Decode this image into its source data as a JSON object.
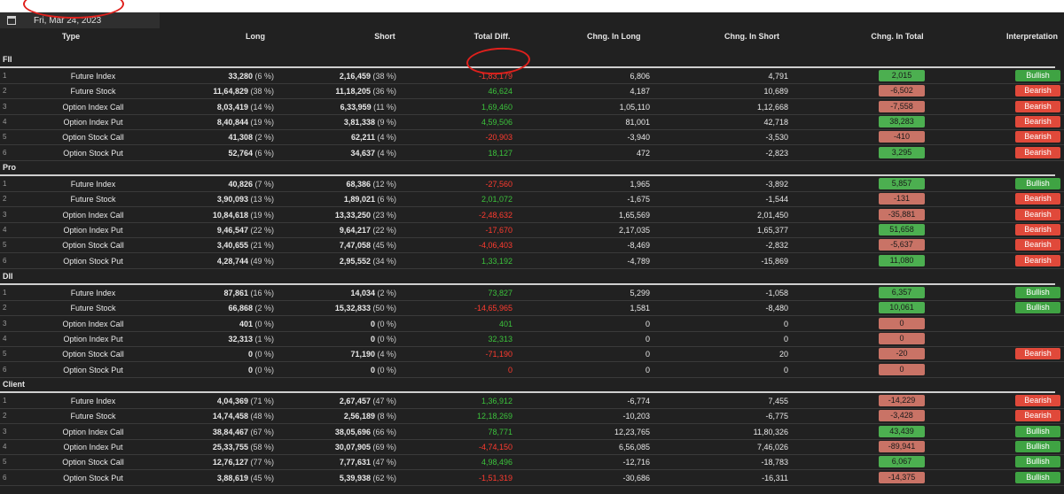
{
  "date": "Fri, Mar 24, 2023",
  "headers": {
    "type": "Type",
    "long": "Long",
    "short": "Short",
    "total_diff": "Total Diff.",
    "chng_long": "Chng. In Long",
    "chng_short": "Chng. In Short",
    "chng_total": "Chng. In Total",
    "interpretation": "Interpretation"
  },
  "colors": {
    "positive": "#3cc23c",
    "negative": "#ff3b2f",
    "bullish": "#3fa343",
    "bearish": "#e0493a"
  },
  "sections": [
    {
      "name": "FII",
      "rows": [
        {
          "idx": "1",
          "type": "Future Index",
          "long": "33,280",
          "long_pct": "(6 %)",
          "short": "2,16,459",
          "short_pct": "(38 %)",
          "diff": "-1,83,179",
          "clong": "6,806",
          "cshort": "4,791",
          "ctotal": "2,015",
          "interp": "Bullish"
        },
        {
          "idx": "2",
          "type": "Future Stock",
          "long": "11,64,829",
          "long_pct": "(38 %)",
          "short": "11,18,205",
          "short_pct": "(36 %)",
          "diff": "46,624",
          "clong": "4,187",
          "cshort": "10,689",
          "ctotal": "-6,502",
          "interp": "Bearish"
        },
        {
          "idx": "3",
          "type": "Option Index Call",
          "long": "8,03,419",
          "long_pct": "(14 %)",
          "short": "6,33,959",
          "short_pct": "(11 %)",
          "diff": "1,69,460",
          "clong": "1,05,110",
          "cshort": "1,12,668",
          "ctotal": "-7,558",
          "interp": "Bearish"
        },
        {
          "idx": "4",
          "type": "Option Index Put",
          "long": "8,40,844",
          "long_pct": "(19 %)",
          "short": "3,81,338",
          "short_pct": "(9 %)",
          "diff": "4,59,506",
          "clong": "81,001",
          "cshort": "42,718",
          "ctotal": "38,283",
          "interp": "Bearish"
        },
        {
          "idx": "5",
          "type": "Option Stock Call",
          "long": "41,308",
          "long_pct": "(2 %)",
          "short": "62,211",
          "short_pct": "(4 %)",
          "diff": "-20,903",
          "clong": "-3,940",
          "cshort": "-3,530",
          "ctotal": "-410",
          "interp": "Bearish"
        },
        {
          "idx": "6",
          "type": "Option Stock Put",
          "long": "52,764",
          "long_pct": "(6 %)",
          "short": "34,637",
          "short_pct": "(4 %)",
          "diff": "18,127",
          "clong": "472",
          "cshort": "-2,823",
          "ctotal": "3,295",
          "interp": "Bearish"
        }
      ]
    },
    {
      "name": "Pro",
      "rows": [
        {
          "idx": "1",
          "type": "Future Index",
          "long": "40,826",
          "long_pct": "(7 %)",
          "short": "68,386",
          "short_pct": "(12 %)",
          "diff": "-27,560",
          "clong": "1,965",
          "cshort": "-3,892",
          "ctotal": "5,857",
          "interp": "Bullish"
        },
        {
          "idx": "2",
          "type": "Future Stock",
          "long": "3,90,093",
          "long_pct": "(13 %)",
          "short": "1,89,021",
          "short_pct": "(6 %)",
          "diff": "2,01,072",
          "clong": "-1,675",
          "cshort": "-1,544",
          "ctotal": "-131",
          "interp": "Bearish"
        },
        {
          "idx": "3",
          "type": "Option Index Call",
          "long": "10,84,618",
          "long_pct": "(19 %)",
          "short": "13,33,250",
          "short_pct": "(23 %)",
          "diff": "-2,48,632",
          "clong": "1,65,569",
          "cshort": "2,01,450",
          "ctotal": "-35,881",
          "interp": "Bearish"
        },
        {
          "idx": "4",
          "type": "Option Index Put",
          "long": "9,46,547",
          "long_pct": "(22 %)",
          "short": "9,64,217",
          "short_pct": "(22 %)",
          "diff": "-17,670",
          "clong": "2,17,035",
          "cshort": "1,65,377",
          "ctotal": "51,658",
          "interp": "Bearish"
        },
        {
          "idx": "5",
          "type": "Option Stock Call",
          "long": "3,40,655",
          "long_pct": "(21 %)",
          "short": "7,47,058",
          "short_pct": "(45 %)",
          "diff": "-4,06,403",
          "clong": "-8,469",
          "cshort": "-2,832",
          "ctotal": "-5,637",
          "interp": "Bearish"
        },
        {
          "idx": "6",
          "type": "Option Stock Put",
          "long": "4,28,744",
          "long_pct": "(49 %)",
          "short": "2,95,552",
          "short_pct": "(34 %)",
          "diff": "1,33,192",
          "clong": "-4,789",
          "cshort": "-15,869",
          "ctotal": "11,080",
          "interp": "Bearish"
        }
      ]
    },
    {
      "name": "DII",
      "rows": [
        {
          "idx": "1",
          "type": "Future Index",
          "long": "87,861",
          "long_pct": "(16 %)",
          "short": "14,034",
          "short_pct": "(2 %)",
          "diff": "73,827",
          "clong": "5,299",
          "cshort": "-1,058",
          "ctotal": "6,357",
          "interp": "Bullish"
        },
        {
          "idx": "2",
          "type": "Future Stock",
          "long": "66,868",
          "long_pct": "(2 %)",
          "short": "15,32,833",
          "short_pct": "(50 %)",
          "diff": "-14,65,965",
          "clong": "1,581",
          "cshort": "-8,480",
          "ctotal": "10,061",
          "interp": "Bullish"
        },
        {
          "idx": "3",
          "type": "Option Index Call",
          "long": "401",
          "long_pct": "(0 %)",
          "short": "0",
          "short_pct": "(0 %)",
          "diff": "401",
          "clong": "0",
          "cshort": "0",
          "ctotal": "0",
          "interp": ""
        },
        {
          "idx": "4",
          "type": "Option Index Put",
          "long": "32,313",
          "long_pct": "(1 %)",
          "short": "0",
          "short_pct": "(0 %)",
          "diff": "32,313",
          "clong": "0",
          "cshort": "0",
          "ctotal": "0",
          "interp": ""
        },
        {
          "idx": "5",
          "type": "Option Stock Call",
          "long": "0",
          "long_pct": "(0 %)",
          "short": "71,190",
          "short_pct": "(4 %)",
          "diff": "-71,190",
          "clong": "0",
          "cshort": "20",
          "ctotal": "-20",
          "interp": "Bearish"
        },
        {
          "idx": "6",
          "type": "Option Stock Put",
          "long": "0",
          "long_pct": "(0 %)",
          "short": "0",
          "short_pct": "(0 %)",
          "diff": "0",
          "clong": "0",
          "cshort": "0",
          "ctotal": "0",
          "interp": ""
        }
      ]
    },
    {
      "name": "Client",
      "rows": [
        {
          "idx": "1",
          "type": "Future Index",
          "long": "4,04,369",
          "long_pct": "(71 %)",
          "short": "2,67,457",
          "short_pct": "(47 %)",
          "diff": "1,36,912",
          "clong": "-6,774",
          "cshort": "7,455",
          "ctotal": "-14,229",
          "interp": "Bearish"
        },
        {
          "idx": "2",
          "type": "Future Stock",
          "long": "14,74,458",
          "long_pct": "(48 %)",
          "short": "2,56,189",
          "short_pct": "(8 %)",
          "diff": "12,18,269",
          "clong": "-10,203",
          "cshort": "-6,775",
          "ctotal": "-3,428",
          "interp": "Bearish"
        },
        {
          "idx": "3",
          "type": "Option Index Call",
          "long": "38,84,467",
          "long_pct": "(67 %)",
          "short": "38,05,696",
          "short_pct": "(66 %)",
          "diff": "78,771",
          "clong": "12,23,765",
          "cshort": "11,80,326",
          "ctotal": "43,439",
          "interp": "Bullish"
        },
        {
          "idx": "4",
          "type": "Option Index Put",
          "long": "25,33,755",
          "long_pct": "(58 %)",
          "short": "30,07,905",
          "short_pct": "(69 %)",
          "diff": "-4,74,150",
          "clong": "6,56,085",
          "cshort": "7,46,026",
          "ctotal": "-89,941",
          "interp": "Bullish"
        },
        {
          "idx": "5",
          "type": "Option Stock Call",
          "long": "12,76,127",
          "long_pct": "(77 %)",
          "short": "7,77,631",
          "short_pct": "(47 %)",
          "diff": "4,98,496",
          "clong": "-12,716",
          "cshort": "-18,783",
          "ctotal": "6,067",
          "interp": "Bullish"
        },
        {
          "idx": "6",
          "type": "Option Stock Put",
          "long": "3,88,619",
          "long_pct": "(45 %)",
          "short": "5,39,938",
          "short_pct": "(62 %)",
          "diff": "-1,51,319",
          "clong": "-30,686",
          "cshort": "-16,311",
          "ctotal": "-14,375",
          "interp": "Bullish"
        }
      ]
    }
  ]
}
